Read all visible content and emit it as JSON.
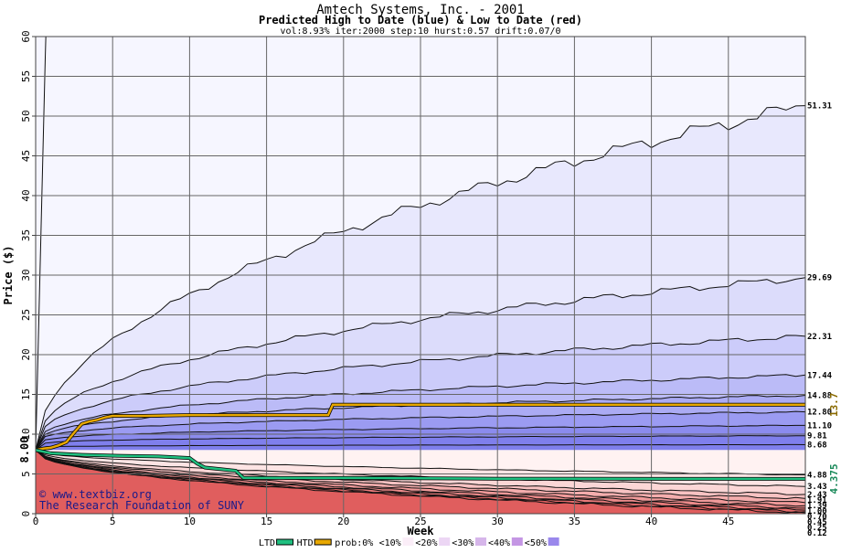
{
  "chart_data": {
    "type": "area",
    "title": "Amtech Systems, Inc. - 2001",
    "subtitle": "Predicted High to Date (blue) &  Low to Date (red)",
    "params": "vol:8.93% iter:2000 step:10 hurst:0.57 drift:0.07/0",
    "xlabel": "Week",
    "ylabel": "Price ($)",
    "xlim": [
      0,
      50
    ],
    "ylim": [
      0,
      60
    ],
    "xticks": [
      0,
      5,
      10,
      15,
      20,
      25,
      30,
      35,
      40,
      45
    ],
    "yticks": [
      0,
      5,
      10,
      15,
      20,
      25,
      30,
      35,
      40,
      45,
      50,
      55,
      60
    ],
    "grid": true,
    "start_price": "8.00",
    "start_value": 8.0,
    "credit_site": "© www.textbiz.org",
    "credit_org": "The Research Foundation of SUNY",
    "right_annotations": [
      {
        "label": "13.7",
        "value": 13.7,
        "color": "#8a6a00"
      },
      {
        "label": "4.375",
        "value": 4.375,
        "color": "#1a8a5a"
      }
    ],
    "high_band_colors": [
      "#f6f6ff",
      "#e8e8fd",
      "#dcdcfb",
      "#ccccfa",
      "#bbbbf7",
      "#ababf4",
      "#9b9bf2",
      "#8b8bee",
      "#7f7fec"
    ],
    "low_band_colors": [
      "#fff2f2",
      "#fde4e4",
      "#fbd6d6",
      "#f8c2c2",
      "#f4adad",
      "#f09a9a",
      "#ec8a8a",
      "#e87a7a",
      "#e46a6a",
      "#e05e5e"
    ],
    "high_levels": [
      {
        "label": "",
        "end": 120,
        "k": 1.0,
        "p": 0.5
      },
      {
        "label": "51.31",
        "end": 51.31,
        "k": 0.9,
        "p": 0.55
      },
      {
        "label": "29.69",
        "end": 29.69,
        "k": 0.8,
        "p": 0.5
      },
      {
        "label": "22.31",
        "end": 22.31,
        "k": 0.8,
        "p": 0.45
      },
      {
        "label": "17.44",
        "end": 17.44,
        "k": 0.8,
        "p": 0.4
      },
      {
        "label": "14.88",
        "end": 14.88,
        "k": 0.8,
        "p": 0.35
      },
      {
        "label": "12.80",
        "end": 12.8,
        "k": 0.8,
        "p": 0.3
      },
      {
        "label": "11.10",
        "end": 11.1,
        "k": 0.8,
        "p": 0.25
      },
      {
        "label": "9.81",
        "end": 9.81,
        "k": 0.8,
        "p": 0.2
      },
      {
        "label": "8.68",
        "end": 8.68,
        "k": 0.8,
        "p": 0.15
      }
    ],
    "low_levels": [
      {
        "label": "4.88",
        "end": 4.88
      },
      {
        "label": "3.43",
        "end": 3.43
      },
      {
        "label": "2.43",
        "end": 2.43
      },
      {
        "label": "1.91",
        "end": 1.91
      },
      {
        "label": "1.39",
        "end": 1.39
      },
      {
        "label": "1.00",
        "end": 1.0
      },
      {
        "label": "0.70",
        "end": 0.7
      },
      {
        "label": "0.45",
        "end": 0.45
      },
      {
        "label": "0.25",
        "end": 0.25
      },
      {
        "label": "0.12",
        "end": 0.12
      }
    ],
    "series": [
      {
        "name": "HTD",
        "color": "#e8a800",
        "x": [
          0,
          0.5,
          1,
          1.5,
          2,
          2.5,
          3,
          3.5,
          4,
          4.5,
          5,
          7,
          10,
          15,
          19,
          19.3,
          25,
          30,
          40,
          50
        ],
        "y": [
          8.0,
          8.2,
          8.3,
          8.6,
          9.0,
          10.2,
          11.3,
          11.6,
          11.8,
          12.1,
          12.3,
          12.3,
          12.4,
          12.4,
          12.4,
          13.7,
          13.7,
          13.7,
          13.7,
          13.7
        ]
      },
      {
        "name": "LTD",
        "color": "#20c080",
        "x": [
          0,
          1,
          2,
          3,
          5,
          8,
          10,
          10.5,
          11,
          12,
          13,
          13.5,
          20,
          25,
          30,
          40,
          50
        ],
        "y": [
          8.0,
          7.6,
          7.5,
          7.4,
          7.3,
          7.2,
          7.0,
          6.3,
          5.8,
          5.6,
          5.4,
          4.5,
          4.5,
          4.45,
          4.4,
          4.38,
          4.375
        ]
      }
    ],
    "legend": [
      {
        "label": "LTD",
        "kind": "line",
        "color": "#20c080"
      },
      {
        "label": "HTD",
        "kind": "line",
        "color": "#e8a800"
      },
      {
        "label": "prob:0%",
        "kind": "text",
        "color": ""
      },
      {
        "label": "<10%",
        "kind": "swatch",
        "color": "#fbeef8"
      },
      {
        "label": "<20%",
        "kind": "swatch",
        "color": "#ecd6f4"
      },
      {
        "label": "<30%",
        "kind": "swatch",
        "color": "#d6b6ea"
      },
      {
        "label": "<40%",
        "kind": "swatch",
        "color": "#c496e4"
      },
      {
        "label": "<50%",
        "kind": "swatch",
        "color": "#9a88ec"
      }
    ]
  }
}
